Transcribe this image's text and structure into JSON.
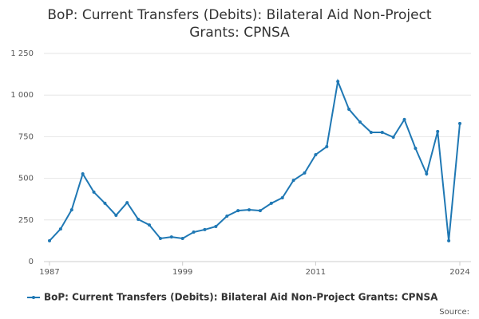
{
  "chart_data": {
    "type": "line",
    "title": "BoP: Current Transfers (Debits): Bilateral Aid Non-Project Grants: CPNSA",
    "x": [
      1987,
      1988,
      1989,
      1990,
      1991,
      1992,
      1993,
      1994,
      1995,
      1996,
      1997,
      1998,
      1999,
      2000,
      2001,
      2002,
      2003,
      2004,
      2005,
      2006,
      2007,
      2008,
      2009,
      2010,
      2011,
      2012,
      2013,
      2014,
      2015,
      2016,
      2017,
      2018,
      2019,
      2020,
      2021,
      2022,
      2023,
      2024
    ],
    "series": [
      {
        "name": "BoP: Current Transfers (Debits): Bilateral Aid Non-Project Grants: CPNSA",
        "color": "#1f78b4",
        "values": [
          125,
          196,
          311,
          527,
          417,
          350,
          278,
          354,
          254,
          220,
          139,
          148,
          139,
          177,
          192,
          211,
          273,
          306,
          311,
          306,
          350,
          383,
          488,
          532,
          642,
          690,
          1082,
          915,
          838,
          776,
          776,
          747,
          853,
          680,
          527,
          781,
          125,
          829
        ]
      }
    ],
    "xlim": [
      1987,
      2024
    ],
    "xticks": [
      1987,
      1999,
      2011,
      2024
    ],
    "ylim": [
      0,
      1250
    ],
    "yticks": [
      0,
      250,
      500,
      750,
      {
        "value": 1000,
        "label": "1 000"
      },
      {
        "value": 1250,
        "label": "1 250"
      }
    ],
    "grid": true,
    "legend": "bottom",
    "source": "Source:"
  }
}
